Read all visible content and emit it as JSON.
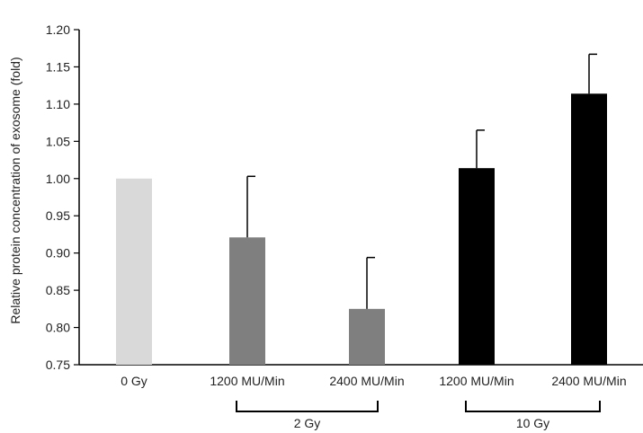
{
  "chart_data": {
    "type": "bar",
    "title": "",
    "xlabel": "",
    "ylabel": "Relative protein concentration of exosome (fold)",
    "ylim": [
      0.75,
      1.2
    ],
    "yticks": [
      "0.75",
      "0.80",
      "0.85",
      "0.90",
      "0.95",
      "1.00",
      "1.05",
      "1.10",
      "1.15",
      "1.20"
    ],
    "categories": [
      "0 Gy",
      "1200 MU/Min",
      "2400 MU/Min",
      "1200 MU/Min",
      "2400 MU/Min"
    ],
    "values": [
      1.0,
      0.921,
      0.825,
      1.014,
      1.114
    ],
    "error_upper": [
      0.0,
      0.082,
      0.069,
      0.051,
      0.053
    ],
    "colors": [
      "#d9d9d9",
      "#7f7f7f",
      "#7f7f7f",
      "#000000",
      "#000000"
    ],
    "groups": [
      {
        "label": "2 Gy",
        "members": [
          1,
          2
        ]
      },
      {
        "label": "10 Gy",
        "members": [
          3,
          4
        ]
      }
    ],
    "grid": false,
    "legend": "none"
  }
}
